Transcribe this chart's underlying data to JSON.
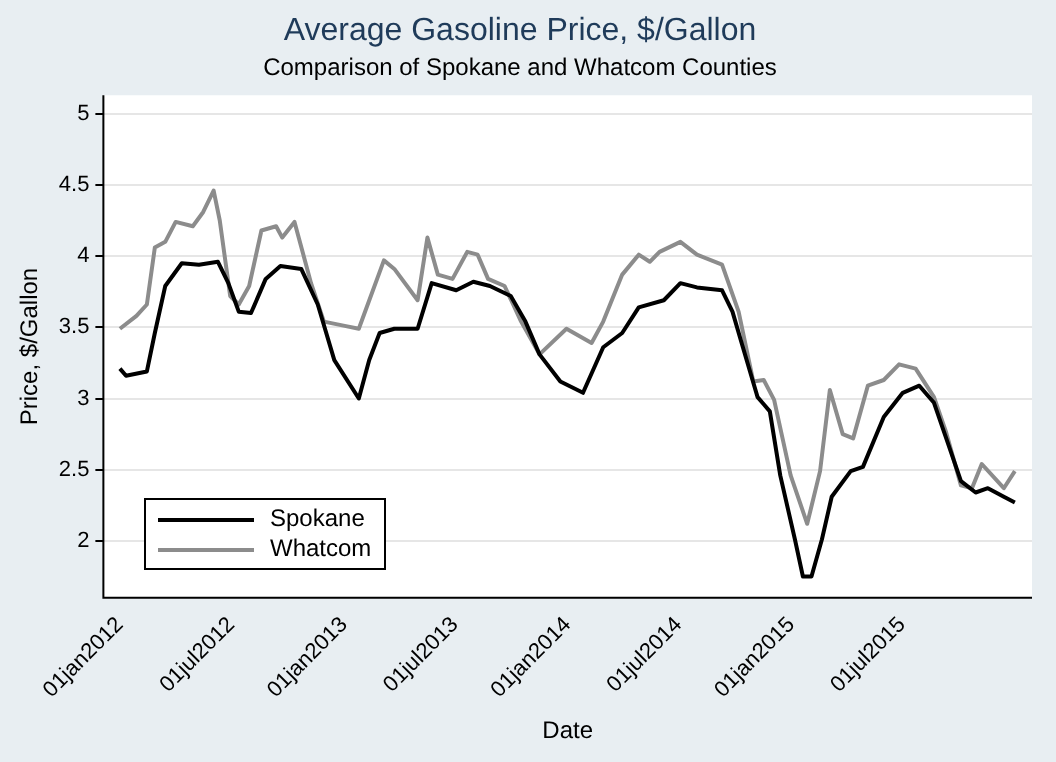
{
  "chart_data": {
    "type": "line",
    "title": "Average Gasoline Price, $/Gallon",
    "subtitle": "Comparison of Spokane and Whatcom Counties",
    "xlabel": "Date",
    "ylabel": "Price, $/Gallon",
    "xlim": [
      "2011-12-05",
      "2016-01-29"
    ],
    "ylim": [
      1.6,
      5.13
    ],
    "xticks": [
      {
        "value": "2012-01-01",
        "label": "01jan2012"
      },
      {
        "value": "2012-07-01",
        "label": "01jul2012"
      },
      {
        "value": "2013-01-01",
        "label": "01jan2013"
      },
      {
        "value": "2013-07-01",
        "label": "01jul2013"
      },
      {
        "value": "2014-01-01",
        "label": "01jan2014"
      },
      {
        "value": "2014-07-01",
        "label": "01jul2014"
      },
      {
        "value": "2015-01-01",
        "label": "01jan2015"
      },
      {
        "value": "2015-07-01",
        "label": "01jul2015"
      }
    ],
    "yticks": [
      2,
      2.5,
      3,
      3.5,
      4,
      4.5,
      5
    ],
    "grid": "y",
    "legend": "bottom left",
    "marker": "none",
    "line_style": "solid",
    "series": [
      {
        "name": "Spokane",
        "color": "#000000",
        "x": [
          "2012-01-01",
          "2012-01-11",
          "2012-02-14",
          "2012-02-27",
          "2012-03-15",
          "2012-04-11",
          "2012-05-09",
          "2012-06-09",
          "2012-06-26",
          "2012-07-13",
          "2012-08-02",
          "2012-08-26",
          "2012-09-19",
          "2012-10-23",
          "2012-11-19",
          "2012-12-16",
          "2013-01-25",
          "2013-02-11",
          "2013-02-28",
          "2013-03-24",
          "2013-05-01",
          "2013-05-24",
          "2013-07-03",
          "2013-07-31",
          "2013-08-27",
          "2013-09-30",
          "2013-10-24",
          "2013-11-16",
          "2013-12-20",
          "2014-01-26",
          "2014-02-28",
          "2014-03-31",
          "2014-04-27",
          "2014-06-07",
          "2014-07-04",
          "2014-07-31",
          "2014-09-10",
          "2014-09-27",
          "2014-10-14",
          "2014-11-07",
          "2014-11-27",
          "2014-12-14",
          "2015-01-07",
          "2015-01-20",
          "2015-02-03",
          "2015-02-20",
          "2015-03-08",
          "2015-04-08",
          "2015-04-28",
          "2015-06-01",
          "2015-07-02",
          "2015-07-29",
          "2015-08-22",
          "2015-09-11",
          "2015-10-05",
          "2015-10-29",
          "2015-11-18",
          "2015-12-14",
          "2016-01-01"
        ],
        "values": [
          3.21,
          3.16,
          3.19,
          3.46,
          3.79,
          3.95,
          3.94,
          3.96,
          3.81,
          3.61,
          3.6,
          3.84,
          3.93,
          3.91,
          3.66,
          3.27,
          3.0,
          3.27,
          3.46,
          3.49,
          3.49,
          3.81,
          3.76,
          3.82,
          3.79,
          3.72,
          3.54,
          3.31,
          3.12,
          3.04,
          3.36,
          3.46,
          3.64,
          3.69,
          3.81,
          3.78,
          3.76,
          3.61,
          3.36,
          3.01,
          2.91,
          2.46,
          2.01,
          1.75,
          1.75,
          2.01,
          2.31,
          2.49,
          2.52,
          2.87,
          3.04,
          3.09,
          2.97,
          2.72,
          2.42,
          2.34,
          2.37,
          2.31,
          2.27
        ]
      },
      {
        "name": "Whatcom",
        "color": "#8c8c8c",
        "x": [
          "2012-01-01",
          "2012-01-28",
          "2012-02-14",
          "2012-02-27",
          "2012-03-15",
          "2012-04-01",
          "2012-04-29",
          "2012-05-16",
          "2012-06-02",
          "2012-06-12",
          "2012-06-29",
          "2012-07-13",
          "2012-07-30",
          "2012-08-19",
          "2012-09-12",
          "2012-09-22",
          "2012-10-12",
          "2012-11-08",
          "2012-11-29",
          "2013-01-02",
          "2013-01-25",
          "2013-03-07",
          "2013-03-24",
          "2013-05-01",
          "2013-05-17",
          "2013-06-03",
          "2013-06-27",
          "2013-07-21",
          "2013-08-07",
          "2013-08-24",
          "2013-09-20",
          "2013-10-17",
          "2013-11-16",
          "2013-12-30",
          "2014-02-09",
          "2014-02-28",
          "2014-03-31",
          "2014-04-27",
          "2014-05-15",
          "2014-05-31",
          "2014-07-04",
          "2014-07-31",
          "2014-09-10",
          "2014-10-07",
          "2014-10-31",
          "2014-11-17",
          "2014-12-04",
          "2014-12-31",
          "2015-01-27",
          "2015-02-17",
          "2015-03-05",
          "2015-03-26",
          "2015-04-12",
          "2015-05-06",
          "2015-06-01",
          "2015-06-26",
          "2015-07-23",
          "2015-08-22",
          "2015-09-11",
          "2015-10-05",
          "2015-10-23",
          "2015-11-08",
          "2015-12-14",
          "2016-01-01"
        ],
        "values": [
          3.49,
          3.58,
          3.66,
          4.06,
          4.1,
          4.24,
          4.21,
          4.31,
          4.46,
          4.25,
          3.72,
          3.66,
          3.79,
          4.18,
          4.21,
          4.13,
          4.24,
          3.81,
          3.54,
          3.51,
          3.49,
          3.97,
          3.91,
          3.69,
          4.13,
          3.87,
          3.84,
          4.03,
          4.01,
          3.84,
          3.79,
          3.54,
          3.31,
          3.49,
          3.39,
          3.54,
          3.87,
          4.01,
          3.96,
          4.03,
          4.1,
          4.01,
          3.94,
          3.61,
          3.12,
          3.13,
          2.99,
          2.46,
          2.12,
          2.49,
          3.06,
          2.75,
          2.72,
          3.09,
          3.13,
          3.24,
          3.21,
          3.01,
          2.76,
          2.39,
          2.37,
          2.54,
          2.37,
          2.49
        ]
      }
    ]
  }
}
